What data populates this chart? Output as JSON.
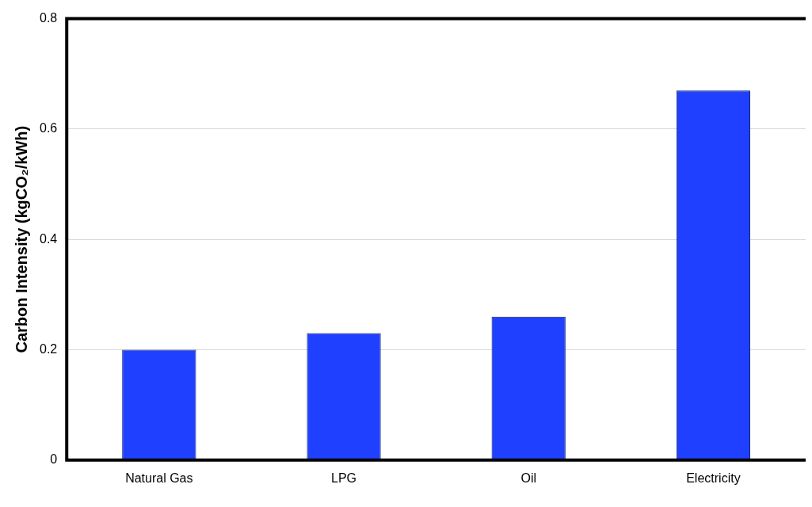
{
  "chart_data": {
    "type": "bar",
    "ylabel": "Carbon Intensity (kgCO₂/kWh)",
    "categories": [
      "Natural Gas",
      "LPG",
      "Oil",
      "Electricity"
    ],
    "values": [
      0.2,
      0.23,
      0.26,
      0.67
    ],
    "color": "#2040ff",
    "ylim": [
      0,
      0.8
    ],
    "yticks": [
      0,
      0.2,
      0.4,
      0.6,
      0.8
    ],
    "grid": "y",
    "legend": false
  }
}
